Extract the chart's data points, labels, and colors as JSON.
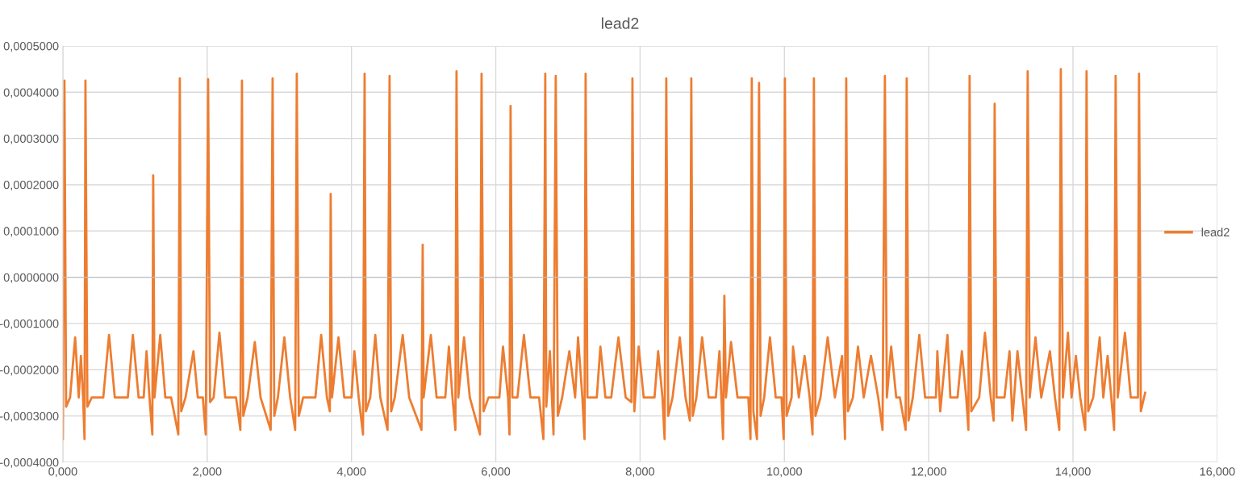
{
  "chart_data": {
    "type": "line",
    "title": "lead2",
    "xlim": [
      0,
      16
    ],
    "ylim": [
      -0.0004,
      0.0005
    ],
    "xticks": [
      {
        "value": 0,
        "label": "0,000"
      },
      {
        "value": 2,
        "label": "2,000"
      },
      {
        "value": 4,
        "label": "4,000"
      },
      {
        "value": 6,
        "label": "6,000"
      },
      {
        "value": 8,
        "label": "8,000"
      },
      {
        "value": 10,
        "label": "10,000"
      },
      {
        "value": 12,
        "label": "12,000"
      },
      {
        "value": 14,
        "label": "14,000"
      },
      {
        "value": 16,
        "label": "16,000"
      }
    ],
    "yticks": [
      {
        "value": -0.0004,
        "label": "-0,0004000"
      },
      {
        "value": -0.0003,
        "label": "-0,0003000"
      },
      {
        "value": -0.0002,
        "label": "-0,0002000"
      },
      {
        "value": -0.0001,
        "label": "-0,0001000"
      },
      {
        "value": 0,
        "label": "0,0000000"
      },
      {
        "value": 0.0001,
        "label": "0,0001000"
      },
      {
        "value": 0.0002,
        "label": "0,0002000"
      },
      {
        "value": 0.0003,
        "label": "0,0003000"
      },
      {
        "value": 0.0004,
        "label": "0,0004000"
      },
      {
        "value": 0.0005,
        "label": "0,0005000"
      }
    ],
    "grid": true,
    "legend": "right",
    "marker": "none",
    "line_style": "solid",
    "series": [
      {
        "name": "lead2",
        "color": "#ed7d31",
        "x": [
          0.0,
          0.022,
          0.045,
          0.1,
          0.17,
          0.22,
          0.25,
          0.28,
          0.3,
          0.313,
          0.34,
          0.4,
          0.56,
          0.64,
          0.72,
          0.9,
          0.97,
          1.05,
          1.12,
          1.16,
          1.2,
          1.24,
          1.252,
          1.27,
          1.35,
          1.42,
          1.5,
          1.6,
          1.621,
          1.64,
          1.7,
          1.81,
          1.87,
          1.94,
          1.98,
          2.013,
          2.04,
          2.09,
          2.17,
          2.25,
          2.4,
          2.46,
          2.482,
          2.5,
          2.56,
          2.66,
          2.74,
          2.88,
          2.907,
          2.93,
          2.98,
          3.07,
          3.15,
          3.22,
          3.242,
          3.27,
          3.33,
          3.5,
          3.58,
          3.66,
          3.7,
          3.712,
          3.73,
          3.82,
          3.9,
          4.0,
          4.04,
          4.1,
          4.16,
          4.182,
          4.2,
          4.26,
          4.33,
          4.4,
          4.5,
          4.528,
          4.55,
          4.6,
          4.71,
          4.8,
          4.97,
          4.987,
          5.0,
          5.1,
          5.18,
          5.3,
          5.35,
          5.4,
          5.44,
          5.456,
          5.48,
          5.56,
          5.64,
          5.78,
          5.803,
          5.83,
          5.9,
          6.05,
          6.1,
          6.17,
          6.19,
          6.205,
          6.23,
          6.3,
          6.39,
          6.48,
          6.6,
          6.66,
          6.686,
          6.7,
          6.75,
          6.8,
          6.831,
          6.86,
          6.92,
          7.02,
          7.1,
          7.14,
          7.2,
          7.23,
          7.245,
          7.27,
          7.4,
          7.45,
          7.52,
          7.6,
          7.7,
          7.8,
          7.88,
          7.894,
          7.92,
          7.98,
          8.05,
          8.2,
          8.25,
          8.31,
          8.34,
          8.363,
          8.39,
          8.45,
          8.55,
          8.63,
          8.69,
          8.71,
          8.73,
          8.78,
          8.86,
          8.95,
          9.05,
          9.1,
          9.15,
          9.168,
          9.19,
          9.26,
          9.35,
          9.5,
          9.53,
          9.548,
          9.57,
          9.62,
          9.649,
          9.67,
          9.72,
          9.8,
          9.88,
          9.96,
          9.99,
          10.007,
          10.03,
          10.1,
          10.12,
          10.2,
          10.28,
          10.35,
          10.39,
          10.409,
          10.43,
          10.5,
          10.6,
          10.7,
          10.8,
          10.84,
          10.857,
          10.88,
          10.95,
          11.02,
          11.1,
          11.2,
          11.3,
          11.36,
          11.393,
          11.42,
          11.48,
          11.55,
          11.6,
          11.68,
          11.695,
          11.72,
          11.78,
          11.87,
          11.95,
          12.1,
          12.12,
          12.16,
          12.26,
          12.3,
          12.4,
          12.46,
          12.52,
          12.55,
          12.567,
          12.59,
          12.7,
          12.78,
          12.86,
          12.9,
          12.914,
          12.94,
          13.05,
          13.12,
          13.16,
          13.23,
          13.3,
          13.35,
          13.372,
          13.4,
          13.48,
          13.56,
          13.68,
          13.75,
          13.81,
          13.831,
          13.86,
          13.93,
          13.98,
          14.04,
          14.1,
          14.17,
          14.188,
          14.21,
          14.28,
          14.37,
          14.42,
          14.48,
          14.57,
          14.591,
          14.62,
          14.72,
          14.8,
          14.9,
          14.915,
          14.94,
          15.0
        ],
        "values": [
          -0.00035,
          0.000425,
          -0.00028,
          -0.00026,
          -0.00013,
          -0.00026,
          -0.00017,
          -0.00026,
          -0.00035,
          0.000425,
          -0.00028,
          -0.00026,
          -0.00026,
          -0.000125,
          -0.00026,
          -0.00026,
          -0.000125,
          -0.00026,
          -0.00026,
          -0.00016,
          -0.00026,
          -0.00034,
          0.00022,
          -0.00026,
          -0.000125,
          -0.00026,
          -0.00026,
          -0.00034,
          0.00043,
          -0.00029,
          -0.00026,
          -0.00016,
          -0.00026,
          -0.00026,
          -0.00034,
          0.000428,
          -0.00027,
          -0.00026,
          -0.00012,
          -0.00026,
          -0.00026,
          -0.00033,
          0.000425,
          -0.0003,
          -0.00026,
          -0.00014,
          -0.00026,
          -0.00033,
          0.00043,
          -0.0003,
          -0.00026,
          -0.00013,
          -0.00026,
          -0.00033,
          0.00044,
          -0.0003,
          -0.00026,
          -0.00026,
          -0.000125,
          -0.00026,
          -0.00029,
          0.00018,
          -0.00026,
          -0.00013,
          -0.00026,
          -0.00026,
          -0.00016,
          -0.00026,
          -0.00034,
          0.00044,
          -0.00029,
          -0.00026,
          -0.000125,
          -0.00026,
          -0.00033,
          0.000435,
          -0.00029,
          -0.00026,
          -0.000125,
          -0.00026,
          -0.00033,
          7e-05,
          -0.00026,
          -0.000125,
          -0.00026,
          -0.00026,
          -0.00015,
          -0.00026,
          -0.00033,
          0.000445,
          -0.00026,
          -0.00013,
          -0.00026,
          -0.00034,
          0.00044,
          -0.00029,
          -0.00026,
          -0.00026,
          -0.00015,
          -0.00026,
          -0.00034,
          0.00037,
          -0.00026,
          -0.00026,
          -0.000125,
          -0.00026,
          -0.00026,
          -0.00035,
          0.00044,
          -0.00028,
          -0.00016,
          -0.00034,
          0.000435,
          -0.0003,
          -0.00026,
          -0.00016,
          -0.00026,
          -0.00013,
          -0.00026,
          -0.00035,
          0.00044,
          -0.00026,
          -0.00026,
          -0.00015,
          -0.00026,
          -0.00026,
          -0.00013,
          -0.00026,
          -0.00027,
          0.00043,
          -0.00029,
          -0.00015,
          -0.00026,
          -0.00026,
          -0.00016,
          -0.00026,
          -0.00035,
          0.00043,
          -0.0003,
          -0.00026,
          -0.00013,
          -0.00026,
          -0.00031,
          0.00043,
          -0.0003,
          -0.00026,
          -0.00013,
          -0.00026,
          -0.00026,
          -0.00016,
          -0.00035,
          -4e-05,
          -0.00026,
          -0.00014,
          -0.00026,
          -0.00026,
          -0.00035,
          0.00043,
          -0.00029,
          -0.00035,
          0.00042,
          -0.0003,
          -0.00026,
          -0.00013,
          -0.00026,
          -0.00026,
          -0.00035,
          0.00043,
          -0.0003,
          -0.00026,
          -0.00015,
          -0.00026,
          -0.00017,
          -0.00026,
          -0.00034,
          0.00043,
          -0.0003,
          -0.00026,
          -0.00013,
          -0.00026,
          -0.00017,
          -0.00035,
          0.00043,
          -0.00029,
          -0.00026,
          -0.00015,
          -0.00026,
          -0.00017,
          -0.00026,
          -0.00033,
          0.000435,
          -0.00026,
          -0.00015,
          -0.00026,
          -0.00026,
          -0.00033,
          0.00043,
          -0.00031,
          -0.00026,
          -0.000125,
          -0.00026,
          -0.00026,
          -0.00016,
          -0.00029,
          -0.000125,
          -0.00026,
          -0.00026,
          -0.00016,
          -0.00026,
          -0.00033,
          0.000435,
          -0.00029,
          -0.00026,
          -0.00012,
          -0.00026,
          -0.00031,
          0.000375,
          -0.00026,
          -0.00026,
          -0.00016,
          -0.00031,
          -0.00016,
          -0.00026,
          -0.00033,
          0.000445,
          -0.00026,
          -0.00013,
          -0.00026,
          -0.00016,
          -0.00026,
          -0.00033,
          0.00045,
          -0.00026,
          -0.00012,
          -0.00026,
          -0.00017,
          -0.00026,
          -0.00033,
          0.000445,
          -0.00029,
          -0.00026,
          -0.00013,
          -0.00026,
          -0.00017,
          -0.00033,
          0.000435,
          -0.00026,
          -0.00012,
          -0.00026,
          -0.00026,
          0.00044,
          -0.00029,
          -0.00025
        ]
      }
    ]
  }
}
